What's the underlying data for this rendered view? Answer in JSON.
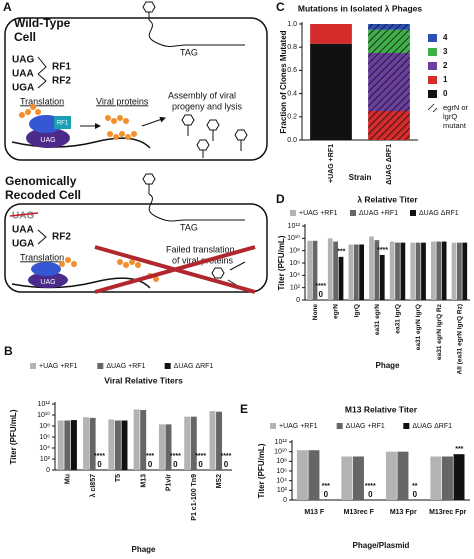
{
  "diagram": {
    "panel": "A",
    "wild_type": {
      "title": [
        "Wild-Type",
        "Cell"
      ],
      "codons": [
        "UAG",
        "UAA",
        "UGA"
      ],
      "factors": [
        "RF1",
        "RF2"
      ],
      "gene": "TAG",
      "steps": [
        "Translation",
        "Viral proteins"
      ],
      "outcome": [
        "Assembly of viral",
        "progeny and lysis"
      ],
      "ribosome_labels": [
        "RF1",
        "UAG"
      ]
    },
    "recoded": {
      "title": [
        "Genomically",
        "Recoded Cell"
      ],
      "codons": [
        "UAG",
        "UAA",
        "UGA"
      ],
      "factors": [
        "RF2"
      ],
      "gene": "TAG",
      "steps": [
        "Translation"
      ],
      "outcome": [
        "Failed translation",
        "of viral proteins"
      ],
      "ribosome_labels": [
        "UAG"
      ]
    }
  },
  "chart_data": [
    {
      "panel": "B",
      "type": "bar",
      "title": "Viral Relative Titers",
      "x_label": "Phage",
      "y_label": "Titer (PFU/mL)",
      "log_y": true,
      "xtick_rotation": 90,
      "categories": [
        "Mu",
        "λ cI857",
        "T5",
        "M13",
        "P1vir",
        "P1 c1-100 Tn9",
        "MS2"
      ],
      "series": [
        {
          "name": "+UAG +RF1",
          "color": "#b3b3b3",
          "values": [
            1000000000,
            4000000000,
            1500000000,
            100000000000,
            200000000,
            5000000000,
            50000000000
          ]
        },
        {
          "name": "ΔUAG +RF1",
          "color": "#666666",
          "values": [
            1000000000,
            3000000000,
            1000000000,
            80000000000,
            200000000,
            5000000000,
            40000000000
          ]
        },
        {
          "name": "ΔUAG ΔRF1",
          "color": "#111111",
          "values": [
            1200000000,
            0,
            1000000000,
            0,
            0,
            0,
            0
          ],
          "value_labels": [
            null,
            "0",
            null,
            "0",
            "0",
            "0",
            "0"
          ],
          "significance": [
            null,
            "****",
            null,
            "***",
            "****",
            "****",
            "****"
          ]
        }
      ],
      "ylim": [
        1,
        1000000000000
      ],
      "yticks": [
        {
          "value": 1000000000000,
          "label": "10¹²"
        },
        {
          "value": 10000000000,
          "label": "10¹⁰"
        },
        {
          "value": 100000000,
          "label": "10⁸"
        },
        {
          "value": 1000000,
          "label": "10⁶"
        },
        {
          "value": 10000,
          "label": "10⁴"
        },
        {
          "value": 100,
          "label": "10²"
        },
        0
      ]
    },
    {
      "panel": "C",
      "type": "stacked_bar",
      "title": "Mutations in Isolated λ Phages",
      "x_label": "Strain",
      "y_label": "Fraction of Clones Mutated",
      "xtick_rotation": 90,
      "categories": [
        "+UAG +RF1",
        "ΔUAG ΔRF1"
      ],
      "series": [
        {
          "name": "0",
          "color": "#111111",
          "values": [
            0.83,
            0
          ],
          "hatched": [
            false,
            false
          ]
        },
        {
          "name": "1",
          "color": "#d62b2b",
          "values": [
            0.17,
            0.25
          ],
          "hatched": [
            false,
            true
          ]
        },
        {
          "name": "2",
          "color": "#6a3fa0",
          "values": [
            0,
            0.5
          ],
          "hatched": [
            false,
            true
          ]
        },
        {
          "name": "3",
          "color": "#3fae49",
          "values": [
            0,
            0.2
          ],
          "hatched": [
            false,
            true
          ]
        },
        {
          "name": "4",
          "color": "#2b4fb5",
          "values": [
            0,
            0.05
          ],
          "hatched": [
            false,
            true
          ]
        }
      ],
      "hatch_label": "egrN or lgrQ mutant",
      "ylim": [
        0,
        1
      ],
      "yticks": [
        {
          "value": 0,
          "label": "0.0"
        },
        0.2,
        0.4,
        0.6,
        0.8,
        {
          "value": 1,
          "label": "1.0"
        }
      ]
    },
    {
      "panel": "D",
      "type": "bar",
      "title": "λ Relative Titer",
      "x_label": "Phage",
      "y_label": "Titer (PFU/mL)",
      "log_y": true,
      "xtick_rotation": 90,
      "categories": [
        "None",
        "egrN",
        "lgrQ",
        "ea31 egrN",
        "ea31 lgrQ",
        "ea31 egrN lgrQ",
        "ea31 egrN lgrQ Rz",
        "All (ea31 egrN lgrQ Rz)"
      ],
      "series": [
        {
          "name": "+UAG +RF1",
          "color": "#b3b3b3",
          "values": [
            4000000000,
            10000000000,
            1000000000,
            20000000000,
            3000000000,
            2000000000,
            3000000000,
            2000000000
          ]
        },
        {
          "name": "ΔUAG +RF1",
          "color": "#666666",
          "values": [
            4000000000,
            3000000000,
            1000000000,
            5000000000,
            2000000000,
            2000000000,
            3000000000,
            2000000000
          ]
        },
        {
          "name": "ΔUAG ΔRF1",
          "color": "#111111",
          "values": [
            0,
            10000000,
            1000000000,
            20000000,
            2000000000,
            2000000000,
            3000000000,
            2000000000
          ],
          "value_labels": [
            "0",
            null,
            null,
            null,
            null,
            null,
            null,
            null
          ],
          "significance": [
            "****",
            "***",
            null,
            "****",
            null,
            null,
            null,
            null
          ]
        }
      ],
      "ylim": [
        1,
        1000000000000
      ],
      "yticks": [
        {
          "value": 1000000000000,
          "label": "10¹²"
        },
        {
          "value": 10000000000,
          "label": "10¹⁰"
        },
        {
          "value": 100000000,
          "label": "10⁸"
        },
        {
          "value": 1000000,
          "label": "10⁶"
        },
        {
          "value": 10000,
          "label": "10⁴"
        },
        {
          "value": 100,
          "label": "10²"
        },
        0
      ]
    },
    {
      "panel": "E",
      "type": "bar",
      "title": "M13 Relative Titer",
      "x_label": "Phage/Plasmid",
      "y_label": "Titer (PFU/mL)",
      "log_y": true,
      "xtick_rotation": 0,
      "categories": [
        "M13 F",
        "M13rec F",
        "M13 Fpr",
        "M13rec Fpr"
      ],
      "series": [
        {
          "name": "+UAG +RF1",
          "color": "#b3b3b3",
          "values": [
            20000000000,
            1000000000,
            10000000000,
            1000000000
          ]
        },
        {
          "name": "ΔUAG +RF1",
          "color": "#666666",
          "values": [
            20000000000,
            1000000000,
            10000000000,
            1000000000
          ]
        },
        {
          "name": "ΔUAG ΔRF1",
          "color": "#111111",
          "values": [
            0,
            0,
            0,
            3000000000
          ],
          "value_labels": [
            "0",
            "0",
            "0",
            null
          ],
          "significance": [
            "***",
            "****",
            "**",
            "***"
          ]
        }
      ],
      "ylim": [
        1,
        1000000000000
      ],
      "yticks": [
        {
          "value": 1000000000000,
          "label": "10¹²"
        },
        {
          "value": 10000000000,
          "label": "10¹⁰"
        },
        {
          "value": 100000000,
          "label": "10⁸"
        },
        {
          "value": 1000000,
          "label": "10⁶"
        },
        {
          "value": 10000,
          "label": "10⁴"
        },
        {
          "value": 100,
          "label": "10²"
        },
        0
      ]
    }
  ]
}
